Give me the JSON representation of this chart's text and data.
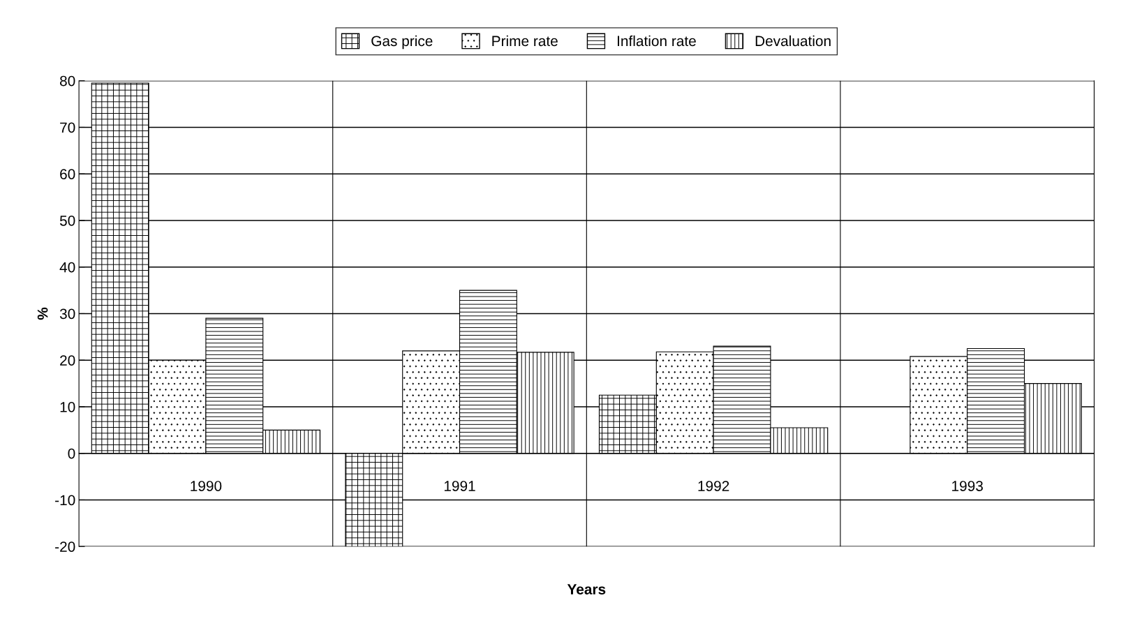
{
  "chart_data": {
    "type": "bar",
    "xlabel": "Years",
    "ylabel": "%",
    "categories": [
      "1990",
      "1991",
      "1992",
      "1993"
    ],
    "series": [
      {
        "name": "Gas price",
        "color": "#000000",
        "values": [
          79.5,
          -20,
          12.5,
          null
        ]
      },
      {
        "name": "Prime rate",
        "color": "#000000",
        "values": [
          20,
          22,
          21.8,
          20.8
        ]
      },
      {
        "name": "Inflation rate",
        "color": "#000000",
        "values": [
          29,
          35,
          23,
          22.5
        ]
      },
      {
        "name": "Devaluation",
        "color": "#000000",
        "values": [
          5,
          21.7,
          5.5,
          15
        ]
      }
    ],
    "ylim": [
      -20,
      80
    ],
    "yticks": [
      -20,
      -10,
      0,
      10,
      20,
      30,
      40,
      50,
      60,
      70,
      80
    ],
    "grid": true,
    "legend": "top"
  }
}
